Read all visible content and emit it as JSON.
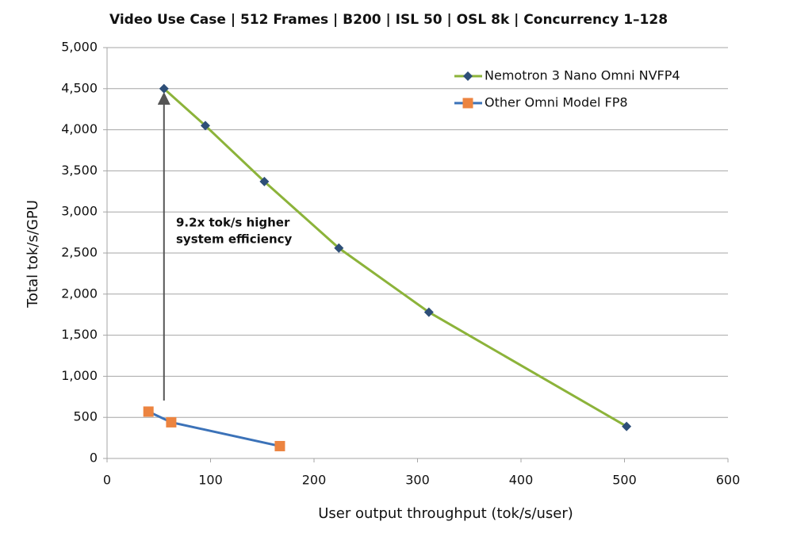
{
  "chart_data": {
    "type": "line",
    "title": "Video Use Case | 512 Frames  | B200 | ISL 50 | OSL 8k | Concurrency 1–128",
    "x_label": "User output throughput (tok/s/user)",
    "y_label": "Total tok/s/GPU",
    "annotation": [
      "9.2x tok/s higher",
      "system efficiency"
    ],
    "xlim": [
      0,
      600
    ],
    "xticks": [
      0,
      100,
      200,
      300,
      400,
      500,
      600
    ],
    "ylim": [
      0,
      5000
    ],
    "yticks": [
      0,
      500,
      {
        "value": 1000,
        "label": "1,000"
      },
      {
        "value": 1500,
        "label": "1,500"
      },
      {
        "value": 2000,
        "label": "2,000"
      },
      {
        "value": 2500,
        "label": "2,500"
      },
      {
        "value": 3000,
        "label": "3,000"
      },
      {
        "value": 3500,
        "label": "3,500"
      },
      {
        "value": 4000,
        "label": "4,000"
      },
      {
        "value": 4500,
        "label": "4,500"
      },
      {
        "value": 5000,
        "label": "5,000"
      }
    ],
    "grid": true,
    "legend": "top-right",
    "series": [
      {
        "name": "Nemotron 3 Nano Omni NVFP4",
        "color": "#8cb33a",
        "marker": "diamond",
        "marker_color": "#2e4f78",
        "x": [
          55,
          95,
          152,
          224,
          311,
          502
        ],
        "values": [
          4500,
          4050,
          3370,
          2560,
          1780,
          390
        ]
      },
      {
        "name": "Other Omni Model FP8",
        "color": "#3b72b8",
        "marker": "square",
        "marker_color": "#ec8440",
        "x": [
          40,
          62,
          167
        ],
        "values": [
          570,
          440,
          150
        ]
      }
    ]
  }
}
